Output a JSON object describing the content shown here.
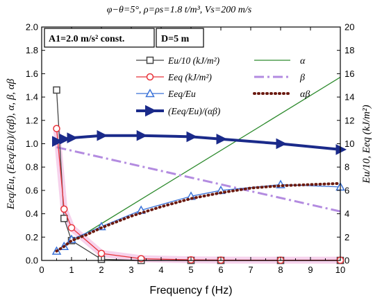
{
  "chart_data": {
    "type": "line",
    "title": "φ−θ=5°, ρ=ρs=1.8 t/m³, Vs=200 m/s",
    "box_a1": "A1=2.0 m/s² const.",
    "box_d": "D=5 m",
    "xlabel": "Frequency f (Hz)",
    "ylabel_left": "Eeq/Eu, (Eeq/Eu)/(αβ), α, β, αβ",
    "ylabel_right": "Eu/10, Eeq (kJ/m²)",
    "xlim": [
      0,
      10
    ],
    "ylim_left": [
      0,
      2.0
    ],
    "ylim_right": [
      0,
      20
    ],
    "x_ticks": [
      "0",
      "1",
      "2",
      "3",
      "4",
      "5",
      "6",
      "7",
      "8",
      "9",
      "10"
    ],
    "y_left_ticks": [
      "0.0",
      "0.2",
      "0.4",
      "0.6",
      "0.8",
      "1.0",
      "1.2",
      "1.4",
      "1.6",
      "1.8",
      "2.0"
    ],
    "y_right_ticks": [
      "0",
      "2",
      "4",
      "6",
      "8",
      "10",
      "12",
      "14",
      "16",
      "18",
      "20"
    ],
    "grid": false,
    "legend_left": [
      "Eu/10 (kJ/m²)",
      "Eeq (kJ/m²)",
      "Eeq/Eu",
      "(Eeq/Eu)/(αβ)"
    ],
    "legend_right": [
      "α",
      "β",
      "αβ"
    ],
    "series": [
      {
        "name": "Eu/10 (kJ/m²)",
        "axis": "right",
        "color": "#444444",
        "marker": "square",
        "x": [
          0.5,
          0.75,
          1.0,
          2.0,
          3.33,
          5.0,
          6.0,
          8.0,
          10.0
        ],
        "y": [
          14.6,
          3.6,
          1.7,
          0.1,
          0.0,
          0.0,
          0.0,
          0.0,
          0.0
        ]
      },
      {
        "name": "Eeq (kJ/m²)",
        "axis": "right",
        "color": "#e8333a",
        "marker": "circle",
        "x": [
          0.5,
          0.75,
          1.0,
          2.0,
          3.33,
          5.0,
          6.0,
          8.0,
          10.0
        ],
        "y": [
          11.3,
          4.4,
          2.8,
          0.6,
          0.15,
          0.05,
          0.03,
          0.02,
          0.02
        ]
      },
      {
        "name": "Eeq/Eu",
        "axis": "left",
        "color": "#3a72d8",
        "marker": "triangle",
        "x": [
          0.5,
          0.75,
          1.0,
          2.0,
          3.33,
          5.0,
          6.0,
          8.0,
          10.0
        ],
        "y": [
          0.08,
          0.12,
          0.18,
          0.29,
          0.43,
          0.55,
          0.6,
          0.65,
          0.63
        ]
      },
      {
        "name": "(Eeq/Eu)/(αβ)",
        "axis": "left",
        "color": "#1a2a8a",
        "marker": "tri-right",
        "x": [
          0.5,
          0.75,
          1.0,
          2.0,
          3.33,
          5.0,
          6.0,
          8.0,
          10.0
        ],
        "y": [
          1.02,
          1.04,
          1.05,
          1.07,
          1.07,
          1.06,
          1.04,
          1.0,
          0.95
        ]
      },
      {
        "name": "α",
        "axis": "left",
        "color": "#2e8b2e",
        "x": [
          0.5,
          10.0
        ],
        "y": [
          0.08,
          1.57
        ]
      },
      {
        "name": "β",
        "axis": "left",
        "color": "#b38be0",
        "x": [
          0.5,
          10.0
        ],
        "y": [
          0.97,
          0.42
        ]
      },
      {
        "name": "αβ",
        "axis": "left",
        "color": "#6b1a10",
        "x": [
          0.5,
          0.75,
          1.0,
          1.5,
          2.0,
          3.0,
          4.0,
          5.0,
          6.0,
          7.0,
          8.0,
          9.0,
          10.0
        ],
        "y": [
          0.08,
          0.12,
          0.17,
          0.22,
          0.28,
          0.38,
          0.46,
          0.53,
          0.58,
          0.62,
          0.64,
          0.65,
          0.66
        ]
      }
    ]
  }
}
